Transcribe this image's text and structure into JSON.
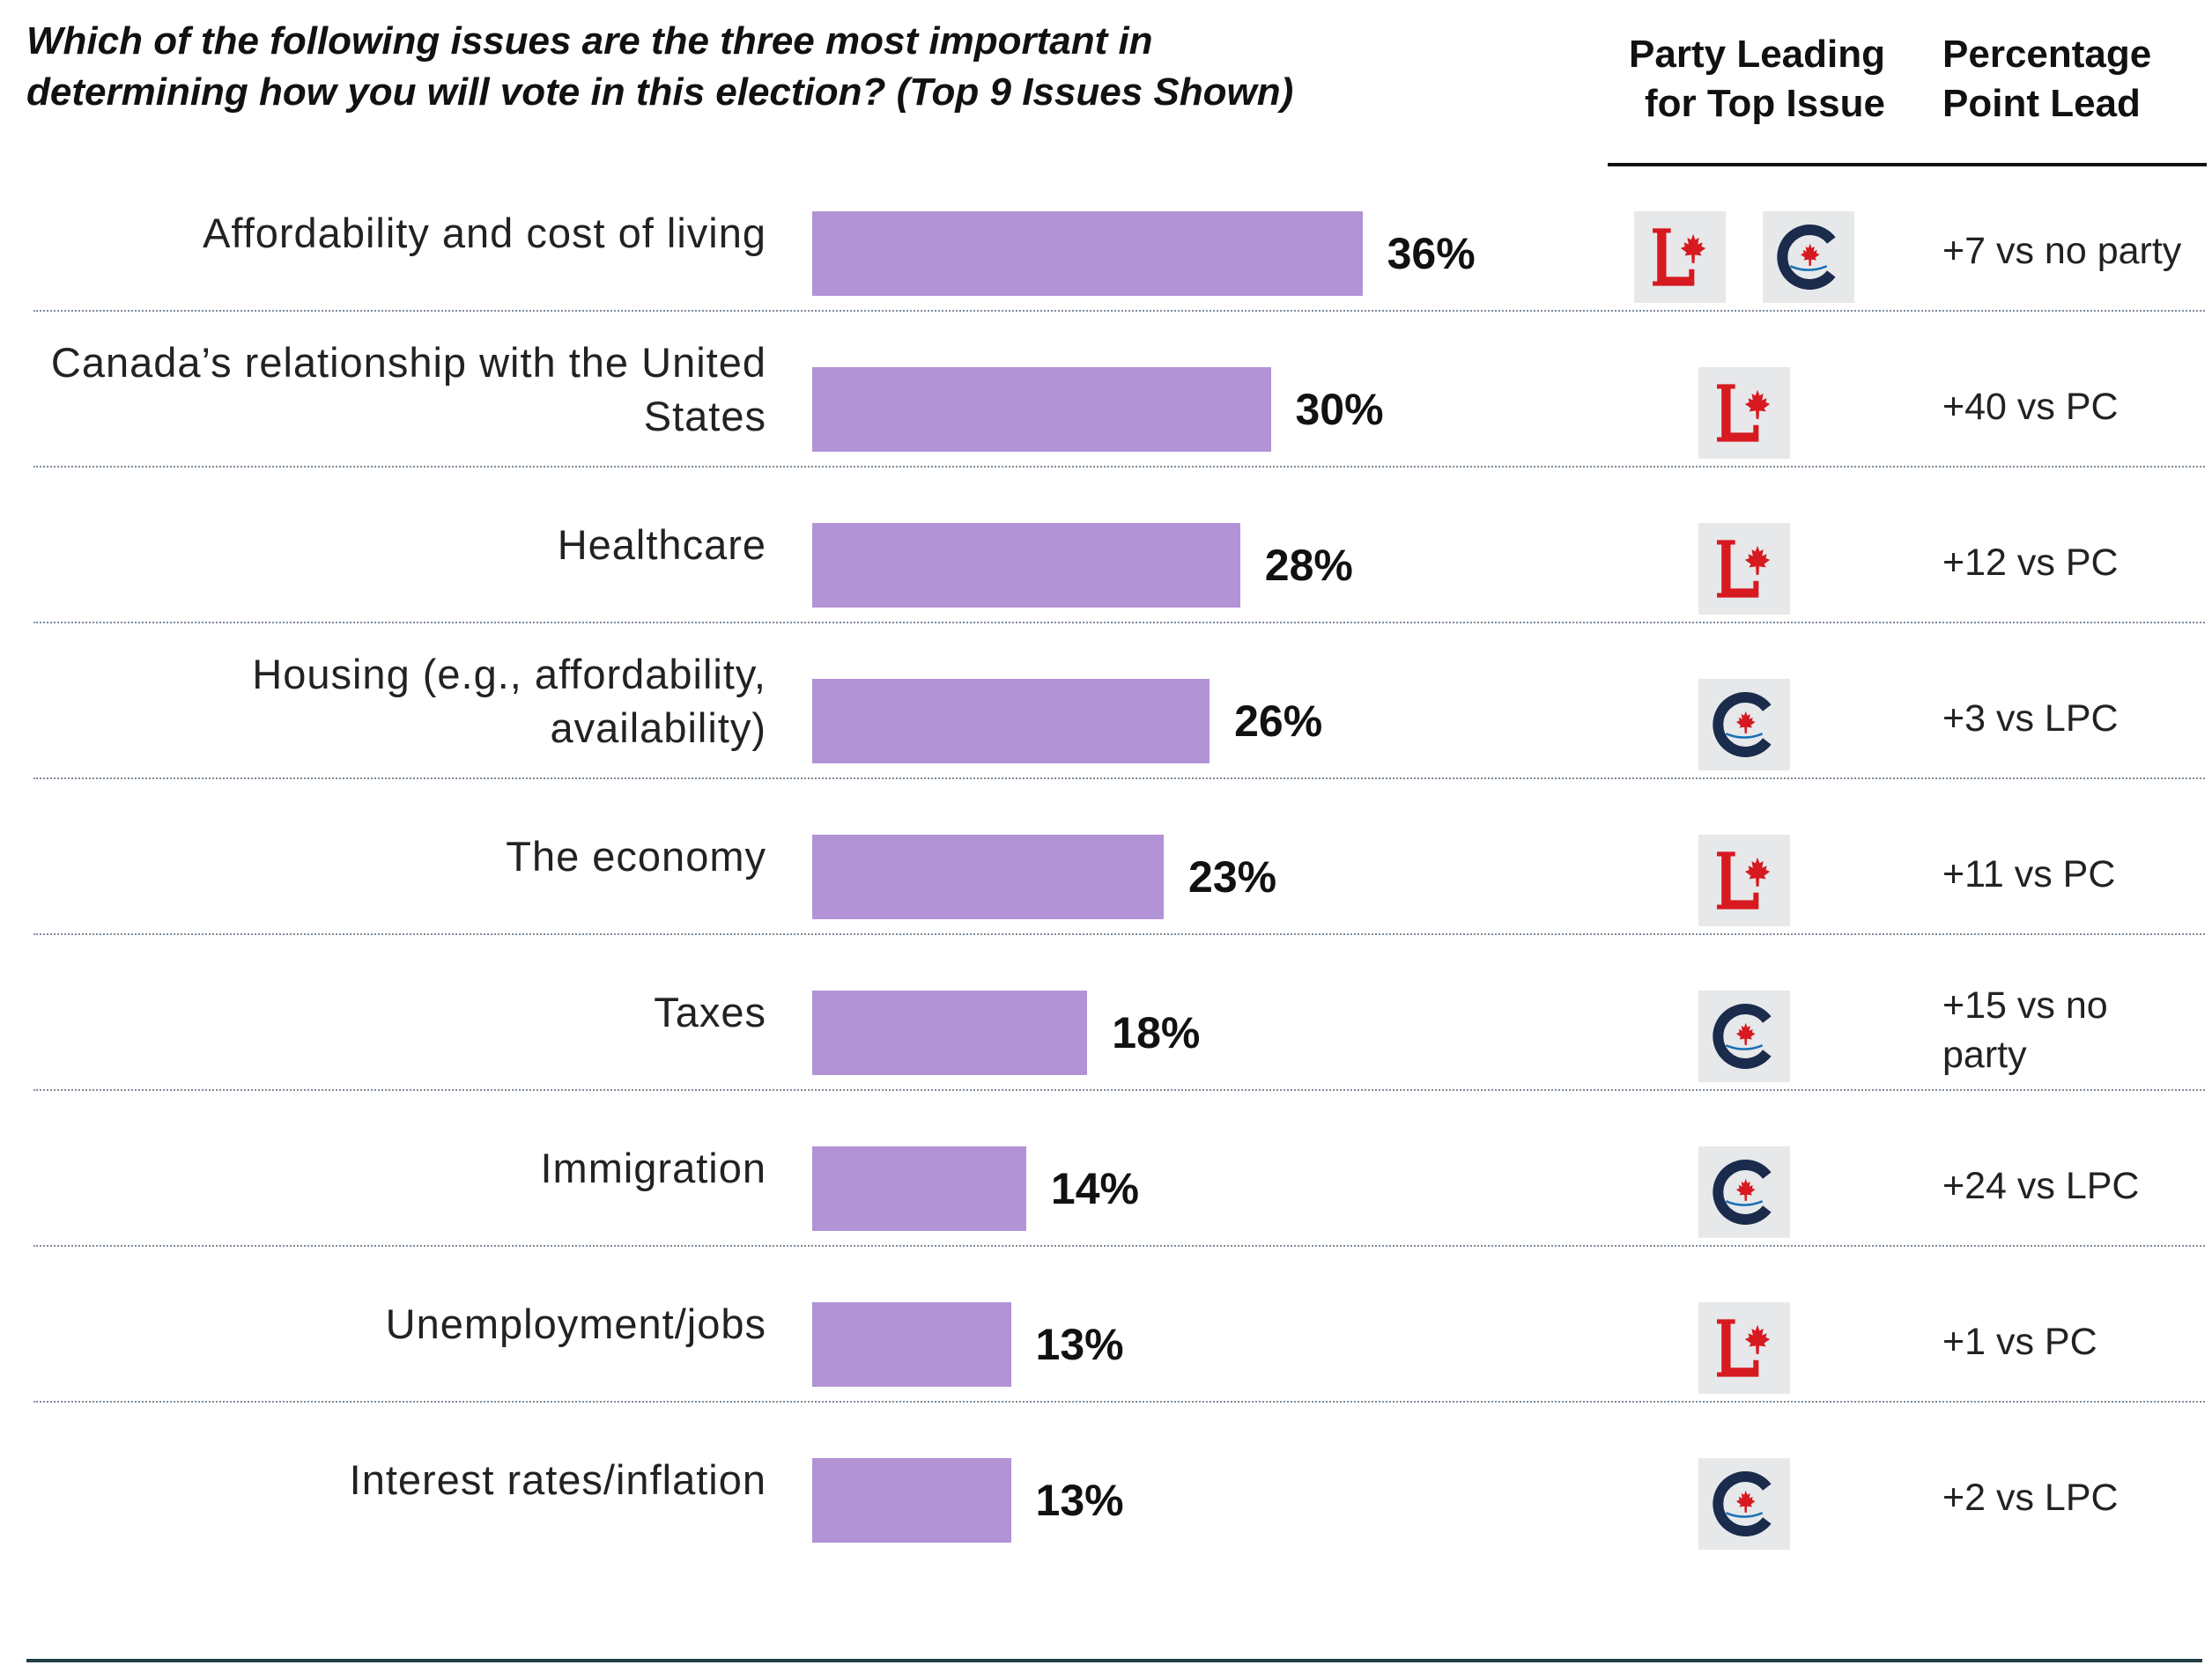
{
  "title": "Which of the following issues are the three most important in determining how you will vote in this election? (Top 9 Issues Shown)",
  "columns": {
    "party_header": "Party Leading for Top Issue",
    "lead_header": "Percentage Point Lead"
  },
  "colors": {
    "bar": "#b293d6",
    "liberal_red": "#d71920",
    "conservative_navy": "#1a2b4c",
    "logo_bg": "#e6e8ea"
  },
  "rows": [
    {
      "issue": "Affordability and cost of living",
      "value_label": "36%",
      "parties": [
        "liberal-logo-icon",
        "conservative-logo-icon"
      ],
      "lead": "+7 vs no party"
    },
    {
      "issue": "Canada’s relationship with the United States",
      "value_label": "30%",
      "parties": [
        "liberal-logo-icon"
      ],
      "lead": "+40 vs PC"
    },
    {
      "issue": "Healthcare",
      "value_label": "28%",
      "parties": [
        "liberal-logo-icon"
      ],
      "lead": "+12 vs PC"
    },
    {
      "issue": "Housing (e.g., affordability, availability)",
      "value_label": "26%",
      "parties": [
        "conservative-logo-icon"
      ],
      "lead": "+3 vs LPC"
    },
    {
      "issue": "The economy",
      "value_label": "23%",
      "parties": [
        "liberal-logo-icon"
      ],
      "lead": "+11 vs PC"
    },
    {
      "issue": "Taxes",
      "value_label": "18%",
      "parties": [
        "conservative-logo-icon"
      ],
      "lead": "+15 vs no party"
    },
    {
      "issue": "Immigration",
      "value_label": "14%",
      "parties": [
        "conservative-logo-icon"
      ],
      "lead": "+24 vs LPC"
    },
    {
      "issue": "Unemployment/jobs",
      "value_label": "13%",
      "parties": [
        "liberal-logo-icon"
      ],
      "lead": "+1 vs PC"
    },
    {
      "issue": "Interest rates/inflation",
      "value_label": "13%",
      "parties": [
        "conservative-logo-icon"
      ],
      "lead": "+2 vs LPC"
    }
  ],
  "chart_data": {
    "type": "bar",
    "orientation": "horizontal",
    "title": "Which of the following issues are the three most important in determining how you will vote in this election? (Top 9 Issues Shown)",
    "categories": [
      "Affordability and cost of living",
      "Canada’s relationship with the United States",
      "Healthcare",
      "Housing (e.g., affordability, availability)",
      "The economy",
      "Taxes",
      "Immigration",
      "Unemployment/jobs",
      "Interest rates/inflation"
    ],
    "values": [
      36,
      30,
      28,
      26,
      23,
      18,
      14,
      13,
      13
    ],
    "unit": "%",
    "xlim": [
      0,
      40
    ],
    "grid": false
  }
}
